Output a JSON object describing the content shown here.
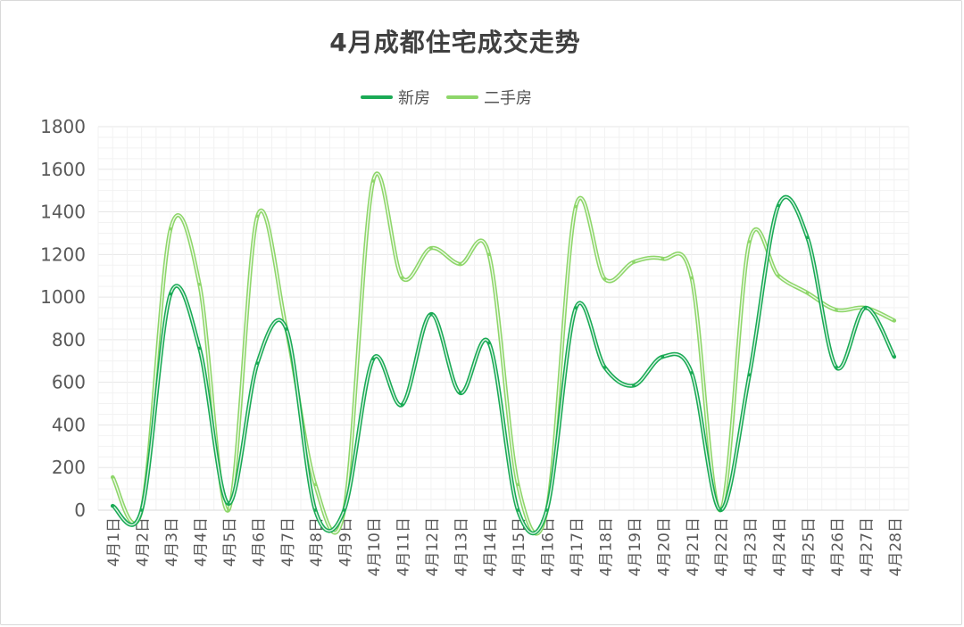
{
  "chart_data": {
    "type": "line",
    "title": "4月成都住宅成交走势",
    "categories": [
      "4月1日",
      "4月2日",
      "4月3日",
      "4月4日",
      "4月5日",
      "4月6日",
      "4月7日",
      "4月8日",
      "4月9日",
      "4月10日",
      "4月11日",
      "4月12日",
      "4月13日",
      "4月14日",
      "4月15日",
      "4月16日",
      "4月17日",
      "4月18日",
      "4月19日",
      "4月20日",
      "4月21日",
      "4月22日",
      "4月23日",
      "4月24日",
      "4月25日",
      "4月26日",
      "4月27日",
      "4月28日"
    ],
    "series": [
      {
        "name": "新房",
        "color": "#1aaa55",
        "values": [
          20,
          0,
          1015,
          760,
          30,
          690,
          850,
          0,
          0,
          710,
          495,
          920,
          550,
          785,
          0,
          0,
          950,
          670,
          585,
          720,
          645,
          0,
          635,
          1430,
          1280,
          670,
          950,
          720
        ]
      },
      {
        "name": "二手房",
        "color": "#8ed66a",
        "values": [
          155,
          0,
          1320,
          1060,
          0,
          1380,
          850,
          120,
          0,
          1545,
          1090,
          1230,
          1155,
          1200,
          120,
          0,
          1425,
          1085,
          1165,
          1180,
          1090,
          0,
          1260,
          1100,
          1020,
          940,
          950,
          890
        ]
      }
    ],
    "yticks": [
      "0",
      "200",
      "400",
      "600",
      "800",
      "1000",
      "1200",
      "1400",
      "1600",
      "1800"
    ],
    "ylim": [
      0,
      1800
    ],
    "grid": true,
    "legend_position": "top"
  }
}
